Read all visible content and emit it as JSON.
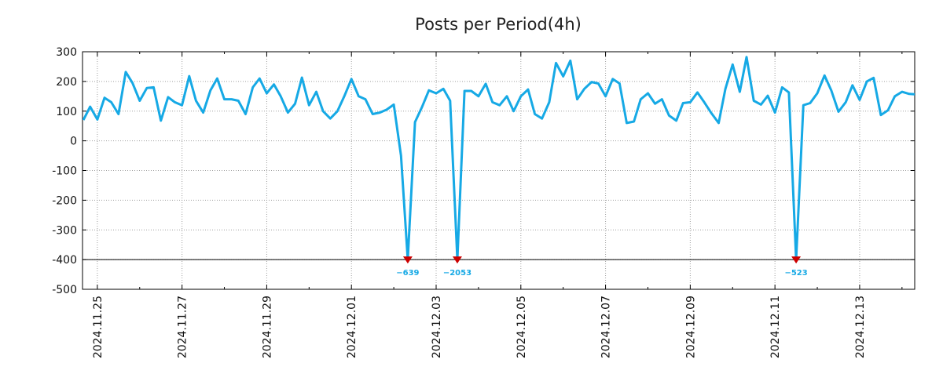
{
  "chart_data": {
    "type": "line",
    "title": "Posts per Period(4h)",
    "xlabel": "",
    "ylabel": "",
    "ylim": [
      -500,
      300
    ],
    "xlim": [
      -0.35,
      19.3
    ],
    "grid": true,
    "floor_line": -400,
    "y_ticks": [
      300,
      200,
      100,
      0,
      -100,
      -200,
      -300,
      -400,
      -500
    ],
    "y_tick_labels": [
      "300",
      "200",
      "100",
      "0",
      "-100",
      "-200",
      "-300",
      "-400",
      "-500"
    ],
    "x_ticks": [
      0,
      2,
      4,
      6,
      8,
      10,
      12,
      14,
      16,
      18
    ],
    "x_tick_labels": [
      "2024.11.25",
      "2024.11.27",
      "2024.11.29",
      "2024.12.01",
      "2024.12.03",
      "2024.12.05",
      "2024.12.07",
      "2024.12.09",
      "2024.12.11",
      "2024.12.13"
    ],
    "series": [
      {
        "name": "Posts per Period(4h)",
        "color": "#16a9e5",
        "points": [
          [
            -0.33,
            70
          ],
          [
            -0.17,
            115
          ],
          [
            0.0,
            72
          ],
          [
            0.17,
            145
          ],
          [
            0.33,
            130
          ],
          [
            0.5,
            90
          ],
          [
            0.67,
            232
          ],
          [
            0.83,
            195
          ],
          [
            1.0,
            135
          ],
          [
            1.17,
            178
          ],
          [
            1.33,
            180
          ],
          [
            1.5,
            68
          ],
          [
            1.67,
            147
          ],
          [
            1.83,
            130
          ],
          [
            2.0,
            120
          ],
          [
            2.17,
            218
          ],
          [
            2.33,
            135
          ],
          [
            2.5,
            95
          ],
          [
            2.67,
            170
          ],
          [
            2.83,
            210
          ],
          [
            3.0,
            140
          ],
          [
            3.17,
            140
          ],
          [
            3.33,
            135
          ],
          [
            3.5,
            90
          ],
          [
            3.67,
            180
          ],
          [
            3.83,
            210
          ],
          [
            4.0,
            160
          ],
          [
            4.17,
            190
          ],
          [
            4.33,
            150
          ],
          [
            4.5,
            95
          ],
          [
            4.67,
            125
          ],
          [
            4.83,
            213
          ],
          [
            5.0,
            120
          ],
          [
            5.17,
            165
          ],
          [
            5.33,
            100
          ],
          [
            5.5,
            75
          ],
          [
            5.67,
            100
          ],
          [
            5.83,
            150
          ],
          [
            6.0,
            208
          ],
          [
            6.17,
            150
          ],
          [
            6.33,
            140
          ],
          [
            6.5,
            90
          ],
          [
            6.67,
            95
          ],
          [
            6.83,
            105
          ],
          [
            7.0,
            122
          ],
          [
            7.17,
            -50
          ],
          [
            7.33,
            -400
          ],
          [
            7.5,
            63
          ],
          [
            7.67,
            115
          ],
          [
            7.83,
            170
          ],
          [
            8.0,
            160
          ],
          [
            8.17,
            175
          ],
          [
            8.33,
            135
          ],
          [
            8.5,
            -400
          ],
          [
            8.67,
            168
          ],
          [
            8.83,
            168
          ],
          [
            9.0,
            150
          ],
          [
            9.17,
            192
          ],
          [
            9.33,
            130
          ],
          [
            9.5,
            120
          ],
          [
            9.67,
            150
          ],
          [
            9.83,
            100
          ],
          [
            10.0,
            150
          ],
          [
            10.17,
            173
          ],
          [
            10.33,
            90
          ],
          [
            10.5,
            75
          ],
          [
            10.67,
            130
          ],
          [
            10.83,
            262
          ],
          [
            11.0,
            217
          ],
          [
            11.17,
            270
          ],
          [
            11.33,
            140
          ],
          [
            11.5,
            175
          ],
          [
            11.67,
            198
          ],
          [
            11.83,
            193
          ],
          [
            12.0,
            150
          ],
          [
            12.17,
            208
          ],
          [
            12.33,
            193
          ],
          [
            12.5,
            60
          ],
          [
            12.67,
            65
          ],
          [
            12.83,
            140
          ],
          [
            13.0,
            160
          ],
          [
            13.17,
            125
          ],
          [
            13.33,
            140
          ],
          [
            13.5,
            85
          ],
          [
            13.67,
            68
          ],
          [
            13.83,
            127
          ],
          [
            14.0,
            130
          ],
          [
            14.17,
            163
          ],
          [
            14.33,
            130
          ],
          [
            14.5,
            93
          ],
          [
            14.67,
            60
          ],
          [
            14.83,
            175
          ],
          [
            15.0,
            257
          ],
          [
            15.17,
            165
          ],
          [
            15.33,
            282
          ],
          [
            15.5,
            135
          ],
          [
            15.67,
            122
          ],
          [
            15.83,
            152
          ],
          [
            16.0,
            95
          ],
          [
            16.17,
            180
          ],
          [
            16.33,
            163
          ],
          [
            16.5,
            -400
          ],
          [
            16.67,
            120
          ],
          [
            16.83,
            127
          ],
          [
            17.0,
            160
          ],
          [
            17.17,
            220
          ],
          [
            17.33,
            170
          ],
          [
            17.5,
            98
          ],
          [
            17.67,
            130
          ],
          [
            17.83,
            187
          ],
          [
            18.0,
            138
          ],
          [
            18.17,
            200
          ],
          [
            18.33,
            212
          ],
          [
            18.5,
            87
          ],
          [
            18.67,
            103
          ],
          [
            18.83,
            150
          ],
          [
            19.0,
            165
          ],
          [
            19.17,
            158
          ],
          [
            19.3,
            157
          ]
        ]
      }
    ],
    "outliers": [
      {
        "x": 7.33,
        "clipped_y": -400,
        "value": -639,
        "label": "−639"
      },
      {
        "x": 8.5,
        "clipped_y": -400,
        "value": -2053,
        "label": "−2053"
      },
      {
        "x": 16.5,
        "clipped_y": -400,
        "value": -523,
        "label": "−523"
      }
    ],
    "colors": {
      "line": "#16a9e5",
      "marker": "#cc0000",
      "grid": "#a0a0a0",
      "axis": "#000000"
    }
  }
}
